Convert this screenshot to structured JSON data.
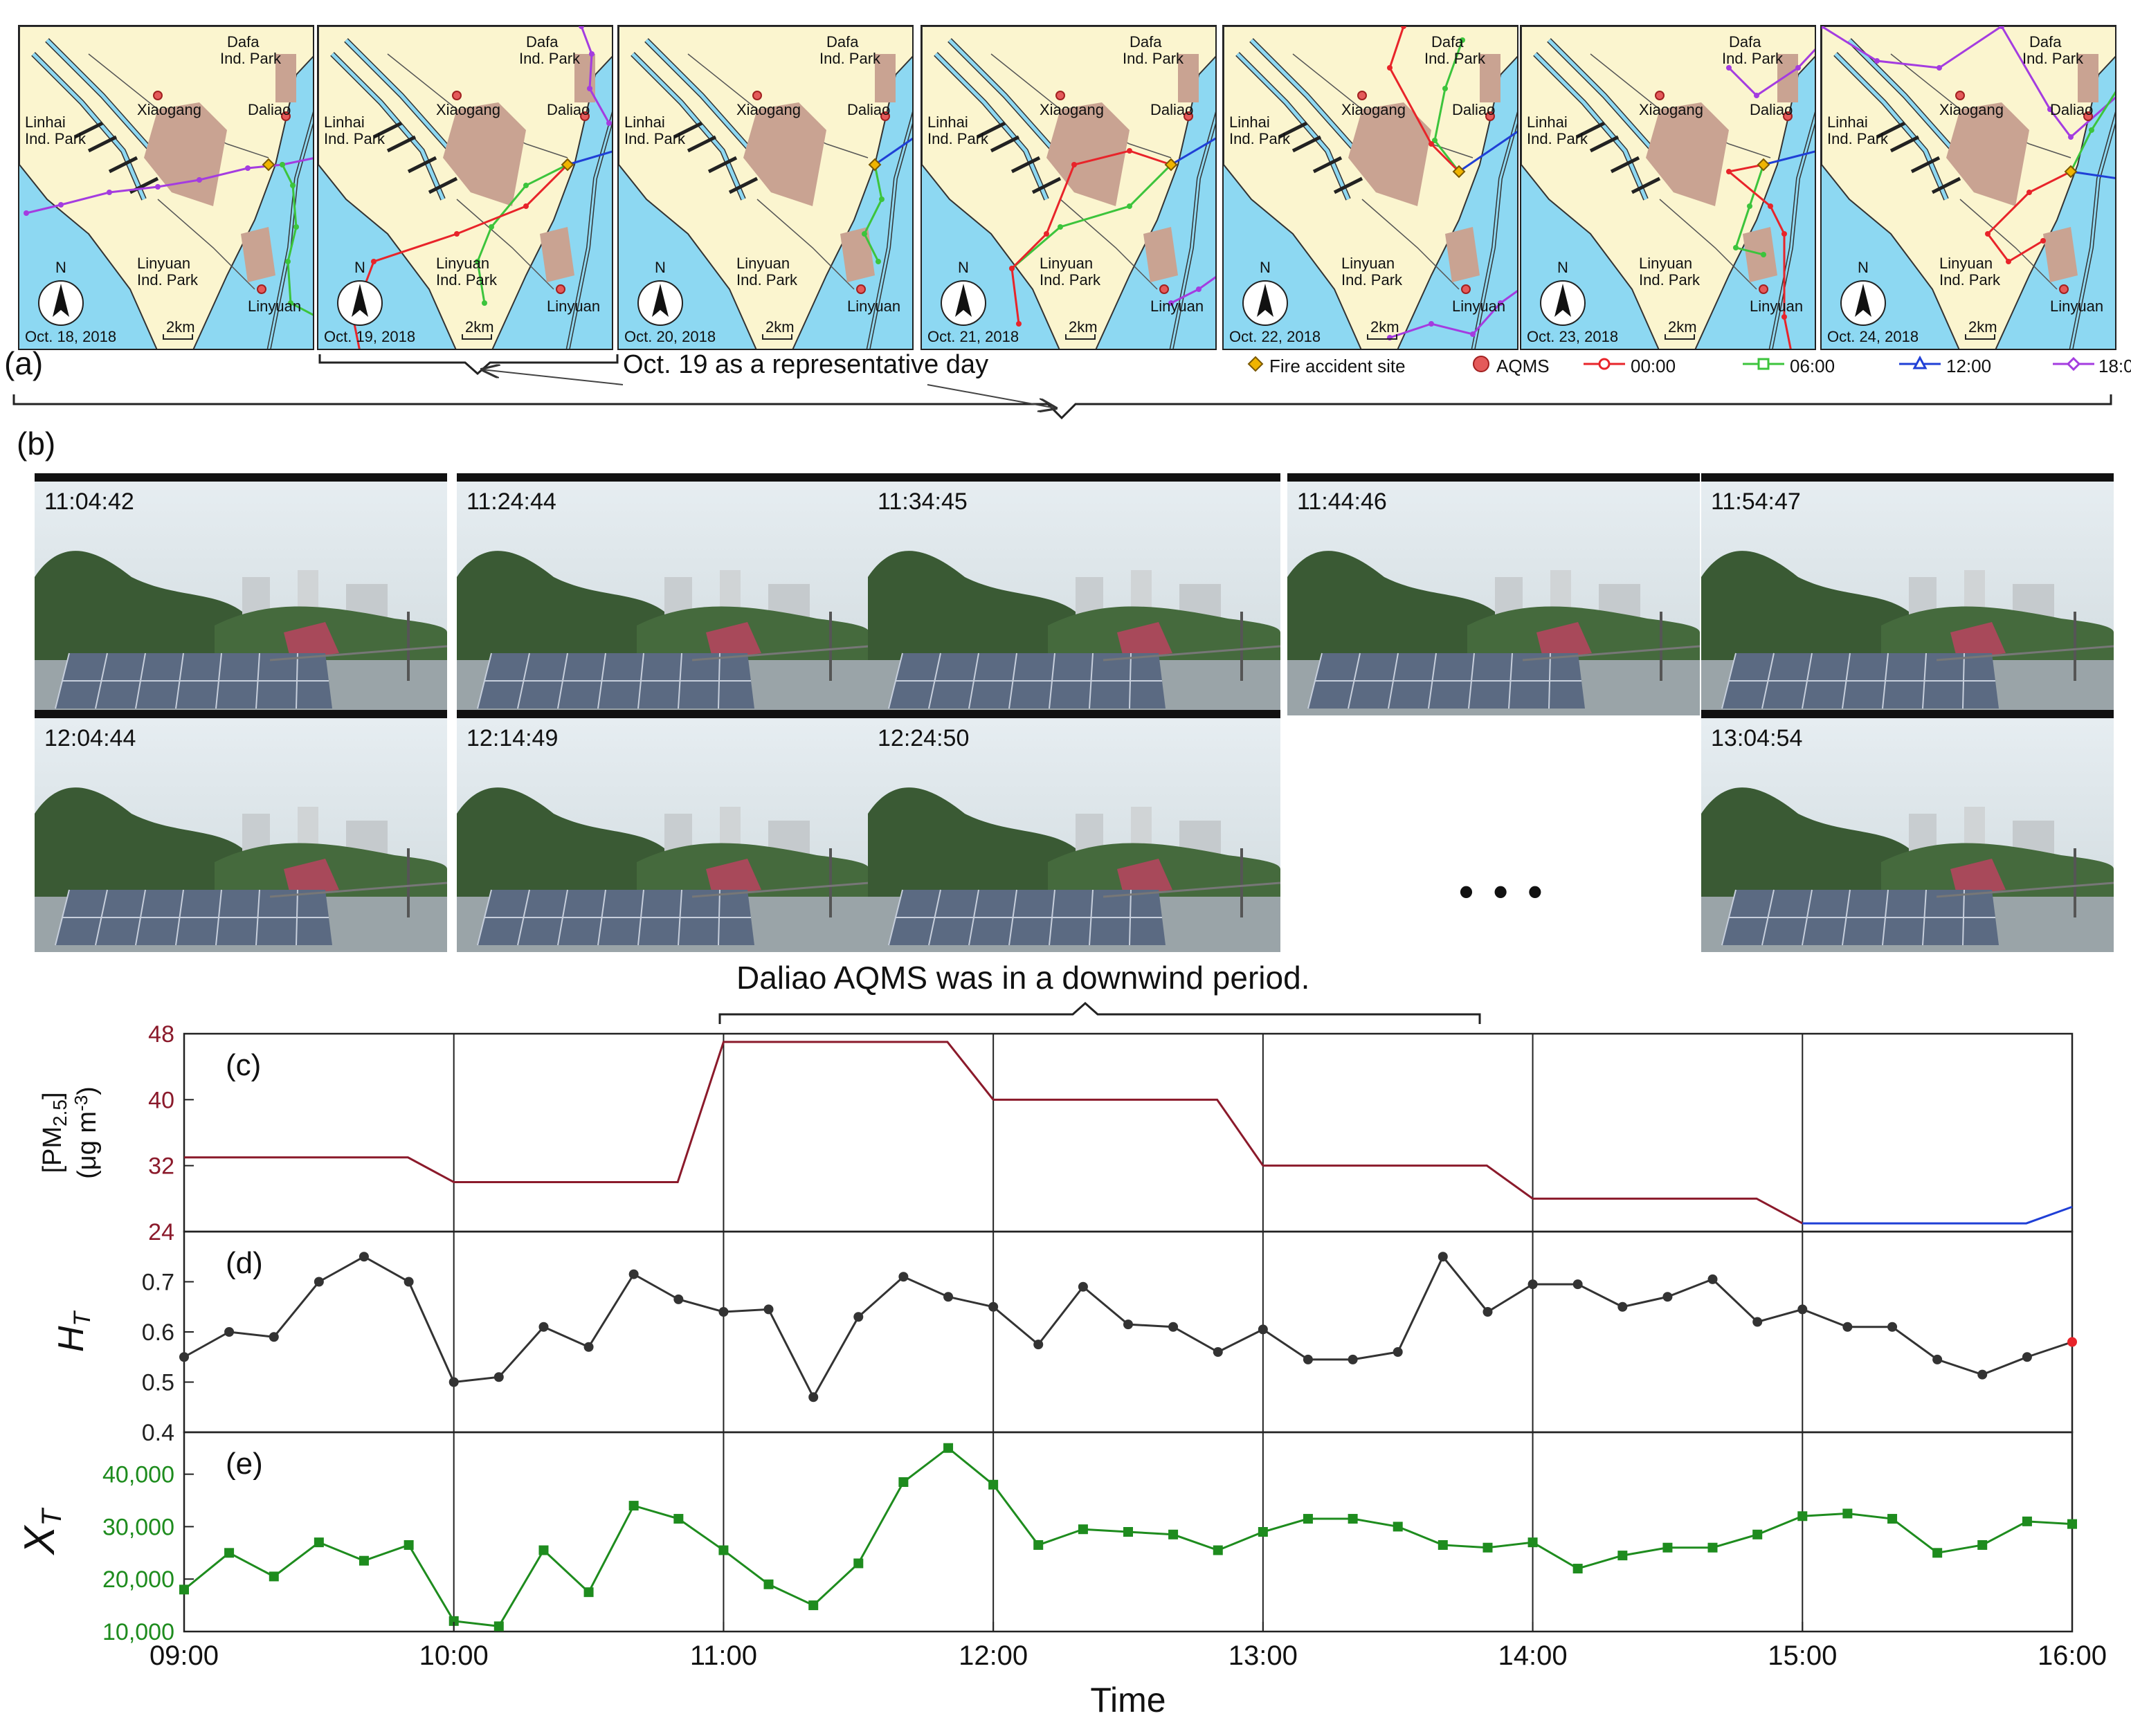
{
  "panels": {
    "a": "(a)",
    "b": "(b)",
    "c": "(c)",
    "d": "(d)",
    "e": "(e)"
  },
  "maps": [
    {
      "date": "Oct. 18, 2018",
      "scale": "2km"
    },
    {
      "date": "Oct. 19, 2018",
      "scale": "2km"
    },
    {
      "date": "Oct. 20, 2018",
      "scale": "2km"
    },
    {
      "date": "Oct. 21, 2018",
      "scale": "2km"
    },
    {
      "date": "Oct. 22, 2018",
      "scale": "2km"
    },
    {
      "date": "Oct. 23, 2018",
      "scale": "2km"
    },
    {
      "date": "Oct. 24, 2018",
      "scale": "2km"
    }
  ],
  "map_labels": {
    "dafa_1": "Dafa",
    "dafa_2": "Ind. Park",
    "linhai_1": "Linhai",
    "linhai_2": "Ind. Park",
    "xiaogang": "Xiaogang",
    "daliao": "Daliao",
    "linyuan_park_1": "Linyuan",
    "linyuan_park_2": "Ind. Park",
    "linyuan": "Linyuan",
    "north": "N"
  },
  "representative_note": "Oct. 19 as a representative day",
  "legend": {
    "fire": "Fire accident site",
    "aqms": "AQMS",
    "t0": "00:00",
    "t6": "06:00",
    "t12": "12:00",
    "t18": "18:00"
  },
  "colors": {
    "t0": "#e8242a",
    "t6": "#3cc43c",
    "t12": "#1f3fd6",
    "t18": "#a43ce0",
    "pm": "#8b1a2b",
    "ht": "#333333",
    "xt": "#1e8c1e",
    "land": "#fbf5cf",
    "park": "#c9a392",
    "sea": "#8dd8f2"
  },
  "photos": [
    {
      "time": "11:04:42"
    },
    {
      "time": "11:24:44"
    },
    {
      "time": "11:34:45"
    },
    {
      "time": "11:44:46"
    },
    {
      "time": "11:54:47"
    },
    {
      "time": "12:04:44"
    },
    {
      "time": "12:14:49"
    },
    {
      "time": "12:24:50"
    },
    {
      "time": "13:04:54"
    }
  ],
  "ellipsis": "• • •",
  "downwind_note": "Daliao AQMS was in a downwind period.",
  "chart_data": [
    {
      "type": "line",
      "panel": "(c)",
      "ylabel_1": "[PM",
      "ylabel_sub": "2.5",
      "ylabel_2": "]",
      "ylabel_unit": "(μg m",
      "ylabel_unit_sup": "-3",
      "ylabel_unit_end": ")",
      "ylim": [
        24,
        48
      ],
      "yticks": [
        "24",
        "32",
        "40",
        "48"
      ],
      "series": [
        {
          "color": "#8b1a2b",
          "x": [
            9.0,
            9.83,
            10.0,
            10.83,
            11.0,
            11.83,
            12.0,
            12.83,
            13.0,
            13.83,
            14.0,
            14.83,
            15.0
          ],
          "y": [
            33,
            33,
            30,
            30,
            47,
            47,
            40,
            40,
            32,
            32,
            28,
            28,
            25
          ]
        },
        {
          "color": "#1f3fd6",
          "x": [
            15.0,
            15.83,
            16.0
          ],
          "y": [
            25,
            25,
            27
          ]
        }
      ]
    },
    {
      "type": "line",
      "panel": "(d)",
      "ylabel": "H",
      "ylabel_sub": "T",
      "ylim": [
        0.4,
        0.8
      ],
      "yticks": [
        "0.4",
        "0.5",
        "0.6",
        "0.7"
      ],
      "x": [
        9.0,
        9.167,
        9.333,
        9.5,
        9.667,
        9.833,
        10.0,
        10.167,
        10.333,
        10.5,
        10.667,
        10.833,
        11.0,
        11.167,
        11.333,
        11.5,
        11.667,
        11.833,
        12.0,
        12.167,
        12.333,
        12.5,
        12.667,
        12.833,
        13.0,
        13.167,
        13.333,
        13.5,
        13.667,
        13.833,
        14.0,
        14.167,
        14.333,
        14.5,
        14.667,
        14.833,
        15.0,
        15.167,
        15.333,
        15.5,
        15.667,
        15.833,
        16.0
      ],
      "y": [
        0.55,
        0.6,
        0.59,
        0.7,
        0.75,
        0.7,
        0.5,
        0.51,
        0.61,
        0.57,
        0.715,
        0.665,
        0.64,
        0.645,
        0.47,
        0.63,
        0.71,
        0.67,
        0.65,
        0.575,
        0.69,
        0.615,
        0.61,
        0.56,
        0.605,
        0.545,
        0.545,
        0.56,
        0.75,
        0.64,
        0.695,
        0.695,
        0.65,
        0.67,
        0.705,
        0.62,
        0.645,
        0.61,
        0.61,
        0.545,
        0.515,
        0.55,
        0.58
      ]
    },
    {
      "type": "line",
      "panel": "(e)",
      "ylabel": "X",
      "ylabel_sub": "T",
      "ylim": [
        10000,
        48000
      ],
      "yticks": [
        "10,000",
        "20,000",
        "30,000",
        "40,000"
      ],
      "xticks": [
        "09:00",
        "10:00",
        "11:00",
        "12:00",
        "13:00",
        "14:00",
        "15:00",
        "16:00"
      ],
      "xlabel": "Time",
      "x": [
        9.0,
        9.167,
        9.333,
        9.5,
        9.667,
        9.833,
        10.0,
        10.167,
        10.333,
        10.5,
        10.667,
        10.833,
        11.0,
        11.167,
        11.333,
        11.5,
        11.667,
        11.833,
        12.0,
        12.167,
        12.333,
        12.5,
        12.667,
        12.833,
        13.0,
        13.167,
        13.333,
        13.5,
        13.667,
        13.833,
        14.0,
        14.167,
        14.333,
        14.5,
        14.667,
        14.833,
        15.0,
        15.167,
        15.333,
        15.5,
        15.667,
        15.833,
        16.0
      ],
      "y": [
        18000,
        25000,
        20500,
        27000,
        23500,
        26500,
        12000,
        11000,
        25500,
        17500,
        34000,
        31500,
        25500,
        19000,
        15000,
        23000,
        38500,
        45000,
        38000,
        26500,
        29500,
        29000,
        28500,
        25500,
        29000,
        31500,
        31500,
        30000,
        26500,
        26000,
        27000,
        22000,
        24500,
        26000,
        26000,
        28500,
        32000,
        32500,
        31500,
        25000,
        26500,
        31000,
        30500
      ]
    }
  ]
}
